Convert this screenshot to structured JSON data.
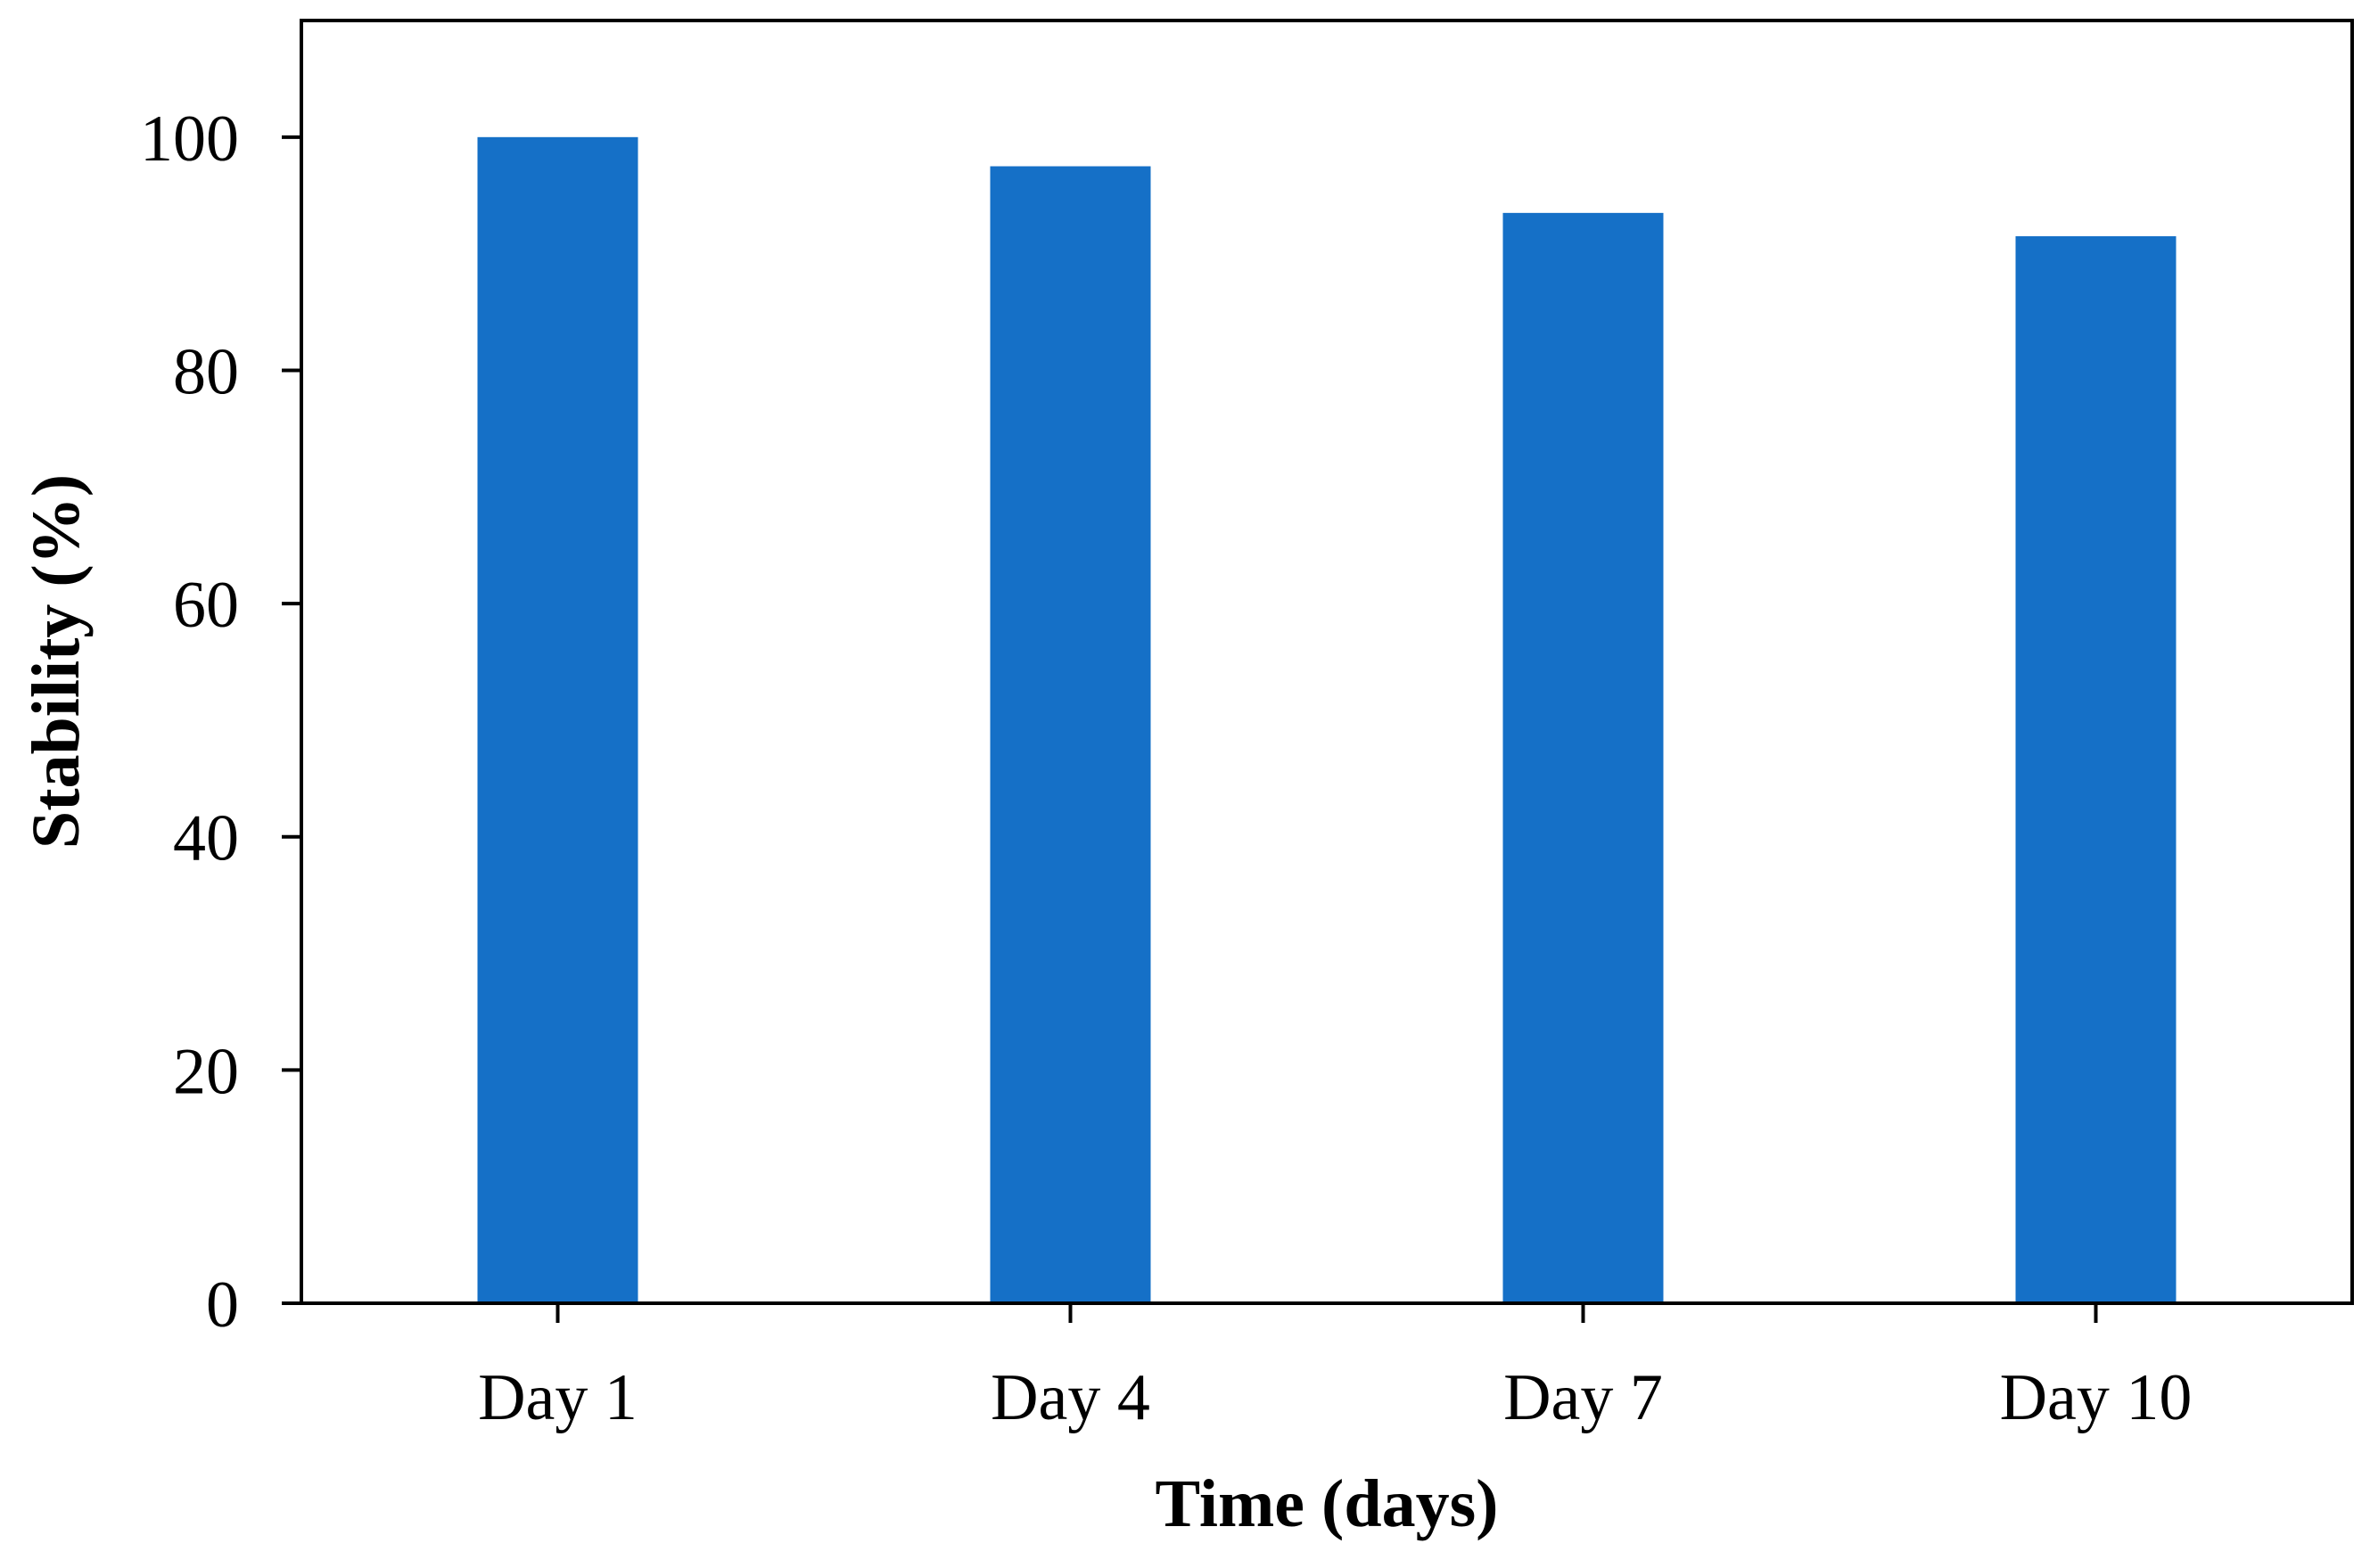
{
  "chart_data": {
    "type": "bar",
    "categories": [
      "Day 1",
      "Day 4",
      "Day 7",
      "Day 10"
    ],
    "values": [
      100,
      97.5,
      93.5,
      91.5
    ],
    "xlabel": "Time (days)",
    "ylabel": "Stability (%)",
    "ylim": [
      0,
      110
    ],
    "yticks": [
      0,
      20,
      40,
      60,
      80,
      100
    ],
    "ytick_labels": [
      "0",
      "20",
      "40",
      "60",
      "80",
      "100"
    ],
    "grid": false,
    "legend": "none",
    "bar_color": "#1570C7"
  }
}
